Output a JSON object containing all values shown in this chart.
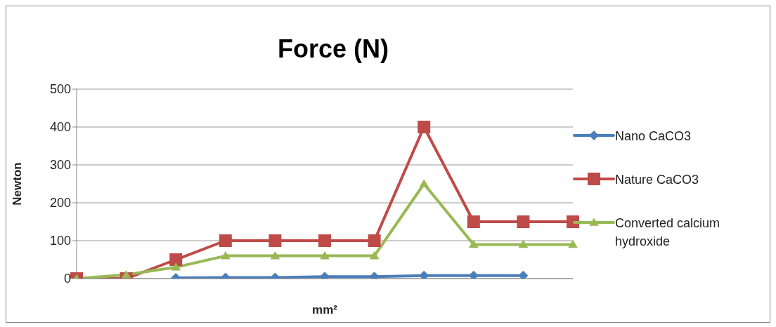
{
  "chart_data": {
    "type": "line",
    "title": "Force (N)",
    "xlabel": "mm²",
    "ylabel": "Newton",
    "categories": [
      null,
      null,
      null,
      null,
      null,
      null,
      null,
      null,
      null,
      null,
      null
    ],
    "series": [
      {
        "name": "Nano CaCO3",
        "color": "#4a7ebb",
        "marker": "diamond",
        "values": [
          null,
          null,
          2,
          3,
          3,
          5,
          5,
          8,
          8,
          8,
          null
        ]
      },
      {
        "name": "Nature CaCO3",
        "color": "#be4b48",
        "marker": "square",
        "values": [
          0,
          0,
          50,
          100,
          100,
          100,
          100,
          400,
          150,
          150,
          150
        ]
      },
      {
        "name": "Converted calcium hydroxide",
        "color": "#98b954",
        "marker": "triangle",
        "values": [
          0,
          10,
          30,
          60,
          60,
          60,
          60,
          250,
          90,
          90,
          90
        ]
      }
    ],
    "ylim": [
      0,
      500
    ],
    "yticks": [
      0,
      100,
      200,
      300,
      400,
      500
    ],
    "grid": "y",
    "legend": "right",
    "line_style": "solid",
    "tick_labels": "y"
  }
}
